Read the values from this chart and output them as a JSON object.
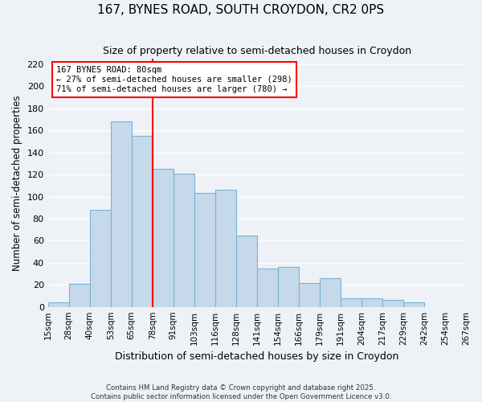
{
  "title": "167, BYNES ROAD, SOUTH CROYDON, CR2 0PS",
  "subtitle": "Size of property relative to semi-detached houses in Croydon",
  "xlabel": "Distribution of semi-detached houses by size in Croydon",
  "ylabel": "Number of semi-detached properties",
  "bin_labels": [
    "15sqm",
    "28sqm",
    "40sqm",
    "53sqm",
    "65sqm",
    "78sqm",
    "91sqm",
    "103sqm",
    "116sqm",
    "128sqm",
    "141sqm",
    "154sqm",
    "166sqm",
    "179sqm",
    "191sqm",
    "204sqm",
    "217sqm",
    "229sqm",
    "242sqm",
    "254sqm",
    "267sqm"
  ],
  "bar_heights": [
    4,
    21,
    88,
    168,
    155,
    125,
    121,
    103,
    106,
    65,
    35,
    36,
    22,
    26,
    8,
    8,
    6,
    4,
    0,
    0
  ],
  "bar_color": "#c5d9ea",
  "bar_edge_color": "#7ab3d3",
  "vline_position": 5,
  "vline_color": "red",
  "annotation_title": "167 BYNES ROAD: 80sqm",
  "annotation_line1": "← 27% of semi-detached houses are smaller (298)",
  "annotation_line2": "71% of semi-detached houses are larger (780) →",
  "ylim": [
    0,
    225
  ],
  "yticks": [
    0,
    20,
    40,
    60,
    80,
    100,
    120,
    140,
    160,
    180,
    200,
    220
  ],
  "footnote1": "Contains HM Land Registry data © Crown copyright and database right 2025.",
  "footnote2": "Contains public sector information licensed under the Open Government Licence v3.0.",
  "bg_color": "#eef2f7",
  "grid_color": "#ffffff"
}
